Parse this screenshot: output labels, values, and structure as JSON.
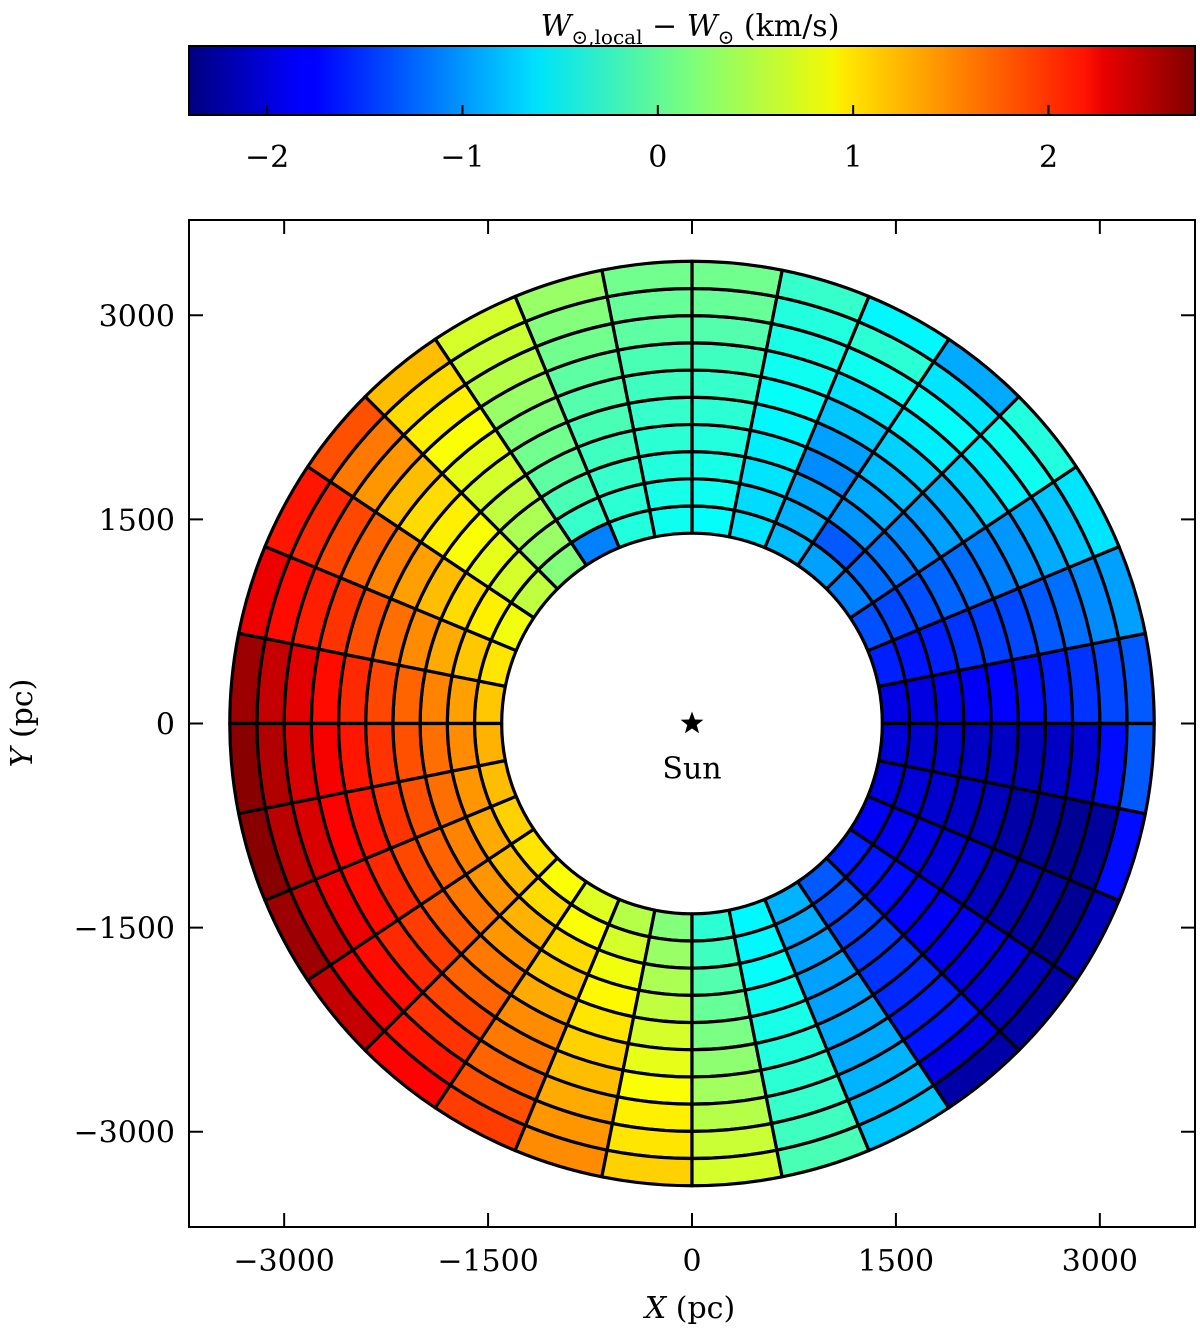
{
  "chart_data": {
    "type": "heatmap",
    "geometry": "polar",
    "title": "",
    "colorbar": {
      "label_main": "W",
      "label_sub": "⊙,local",
      "label_minus": " − ",
      "label_main2": "W",
      "label_sub2": "⊙",
      "label_unit": " (km/s)",
      "range": [
        -2.4,
        2.75
      ],
      "ticks": [
        -2,
        -1,
        0,
        1,
        2
      ],
      "tick_labels": [
        "−2",
        "−1",
        "0",
        "1",
        "2"
      ],
      "colormap": "jet"
    },
    "xlabel_var": "X",
    "xlabel_unit": " (pc)",
    "ylabel_var": "Y",
    "ylabel_unit": " (pc)",
    "xlim": [
      -3700,
      3700
    ],
    "ylim": [
      -3700,
      3700
    ],
    "xticks": [
      -3000,
      -1500,
      0,
      1500,
      3000
    ],
    "xtick_labels": [
      "−3000",
      "−1500",
      "0",
      "1500",
      "3000"
    ],
    "yticks": [
      -3000,
      -1500,
      0,
      1500,
      3000
    ],
    "ytick_labels": [
      "−3000",
      "−1500",
      "0",
      "1500",
      "3000"
    ],
    "radial_edges": [
      1400,
      1600,
      1800,
      2000,
      2200,
      2400,
      2600,
      2800,
      3000,
      3200,
      3400
    ],
    "angle_step_deg": 11.25,
    "sun": {
      "x": 0,
      "y": 0,
      "label": "Sun"
    },
    "sector_values": [
      [
        -1.9,
        -1.9,
        -1.85,
        -1.8,
        -1.75,
        -1.7,
        -1.6,
        -1.5,
        -1.4,
        -1.3
      ],
      [
        -1.6,
        -1.65,
        -1.6,
        -1.5,
        -1.45,
        -1.4,
        -1.3,
        -1.2,
        -1.05,
        -0.95
      ],
      [
        -1.35,
        -1.4,
        -1.35,
        -1.25,
        -1.2,
        -1.1,
        -1.0,
        -0.9,
        -0.75,
        -0.6
      ],
      [
        -1.1,
        -1.2,
        -1.15,
        -1.05,
        -0.95,
        -0.85,
        -0.7,
        -0.55,
        -0.4,
        -0.3
      ],
      [
        -0.95,
        -1.3,
        -1.0,
        -0.9,
        -0.8,
        -0.7,
        -0.55,
        -0.45,
        -0.6,
        -0.9
      ],
      [
        -0.8,
        -0.85,
        -0.9,
        -1.05,
        -0.95,
        -0.75,
        -0.6,
        -0.4,
        -0.25,
        -0.5
      ],
      [
        -0.6,
        -0.65,
        -0.6,
        -0.55,
        -0.5,
        -0.45,
        -0.4,
        -0.35,
        -0.3,
        -0.2
      ],
      [
        -0.45,
        -0.4,
        -0.35,
        -0.3,
        -0.25,
        -0.2,
        -0.15,
        -0.05,
        0.05,
        0.1
      ],
      [
        -0.4,
        -0.35,
        -0.3,
        -0.25,
        -0.2,
        -0.15,
        -0.1,
        0.0,
        0.05,
        0.1
      ],
      [
        -0.3,
        -0.25,
        -0.2,
        -0.15,
        -0.1,
        -0.05,
        0.0,
        0.1,
        0.2,
        0.3
      ],
      [
        -1.1,
        -0.2,
        -0.1,
        0.0,
        0.1,
        0.2,
        0.3,
        0.45,
        0.55,
        0.6
      ],
      [
        0.2,
        0.3,
        0.4,
        0.5,
        0.6,
        0.7,
        0.8,
        0.9,
        1.0,
        1.15
      ],
      [
        0.5,
        0.6,
        0.7,
        0.8,
        0.9,
        1.0,
        1.15,
        1.35,
        1.5,
        1.7
      ],
      [
        0.75,
        0.9,
        1.0,
        1.15,
        1.3,
        1.45,
        1.6,
        1.75,
        1.9,
        2.0
      ],
      [
        0.95,
        1.1,
        1.25,
        1.4,
        1.55,
        1.7,
        1.85,
        1.95,
        2.05,
        2.2
      ],
      [
        1.1,
        1.3,
        1.45,
        1.6,
        1.75,
        1.9,
        2.05,
        2.25,
        2.4,
        2.6
      ],
      [
        1.2,
        1.4,
        1.55,
        1.7,
        1.85,
        2.0,
        2.15,
        2.3,
        2.5,
        2.7
      ],
      [
        1.15,
        1.35,
        1.55,
        1.7,
        1.85,
        2.0,
        2.1,
        2.3,
        2.45,
        2.7
      ],
      [
        1.05,
        1.25,
        1.45,
        1.6,
        1.75,
        1.9,
        2.05,
        2.2,
        2.4,
        2.6
      ],
      [
        0.95,
        1.15,
        1.35,
        1.5,
        1.65,
        1.8,
        1.9,
        2.05,
        2.2,
        2.4
      ],
      [
        0.8,
        1.0,
        1.2,
        1.35,
        1.5,
        1.6,
        1.75,
        1.85,
        2.0,
        2.1
      ],
      [
        0.65,
        0.8,
        1.0,
        1.1,
        1.25,
        1.4,
        1.5,
        1.6,
        1.7,
        1.8
      ],
      [
        0.45,
        0.6,
        0.75,
        0.85,
        0.95,
        1.05,
        1.15,
        1.25,
        1.35,
        1.4
      ],
      [
        0.2,
        0.3,
        0.4,
        0.5,
        0.6,
        0.7,
        0.8,
        0.9,
        0.95,
        1.05
      ],
      [
        -0.25,
        -0.15,
        -0.05,
        0.05,
        0.15,
        0.25,
        0.35,
        0.45,
        0.55,
        0.6
      ],
      [
        -0.5,
        -0.5,
        -0.45,
        -0.4,
        -0.35,
        -0.3,
        -0.25,
        -0.2,
        -0.15,
        -0.1
      ],
      [
        -0.85,
        -0.9,
        -0.95,
        -0.95,
        -0.95,
        -0.9,
        -0.9,
        -0.85,
        -0.8,
        -0.75
      ],
      [
        -1.3,
        -1.35,
        -1.4,
        -1.45,
        -1.5,
        -1.55,
        -1.6,
        -1.65,
        -1.9,
        -2.2
      ],
      [
        -1.6,
        -1.65,
        -1.7,
        -1.75,
        -1.8,
        -1.85,
        -1.9,
        -1.95,
        -2.1,
        -2.2
      ],
      [
        -1.8,
        -1.85,
        -1.9,
        -1.95,
        -2.0,
        -2.1,
        -2.15,
        -2.2,
        -2.3,
        -2.1
      ],
      [
        -1.9,
        -1.95,
        -2.0,
        -2.05,
        -2.1,
        -2.2,
        -2.25,
        -2.3,
        -2.25,
        -1.7
      ],
      [
        -1.95,
        -2.0,
        -2.0,
        -2.05,
        -2.05,
        -2.1,
        -2.05,
        -2.0,
        -1.7,
        -1.3
      ]
    ]
  }
}
